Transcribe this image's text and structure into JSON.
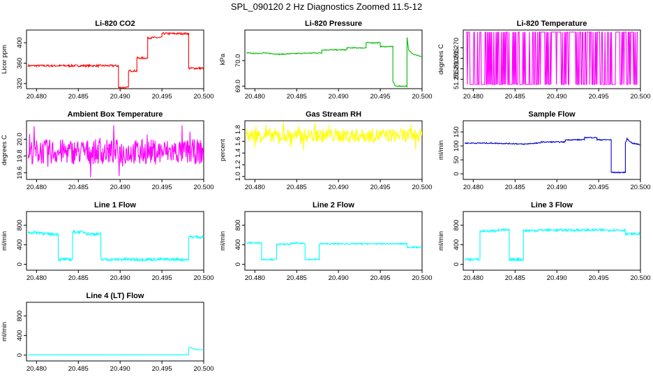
{
  "page_title": "SPL_090120  2 Hz Diagnostics Zoomed 11.5-12",
  "colors": {
    "red": "#ff0000",
    "green": "#00bb00",
    "magenta": "#ff00ff",
    "yellow": "#ffff00",
    "blue": "#0000cc",
    "cyan": "#00ffff"
  },
  "chart_data": [
    {
      "title": "Li-820 CO2",
      "type": "line",
      "ylabel": "Licor ppm",
      "color": "#ff0000",
      "xlim": [
        20.4788,
        20.5
      ],
      "ylim": [
        310,
        425
      ],
      "xticks": [
        "20.480",
        "20.485",
        "20.490",
        "20.495",
        "20.500"
      ],
      "yticks": [
        "320",
        "360",
        "400"
      ],
      "noise": 2,
      "series": [
        {
          "name": "CO2",
          "x": [
            20.479,
            20.4898,
            20.4898,
            20.491,
            20.491,
            20.492,
            20.492,
            20.4933,
            20.4933,
            20.495,
            20.495,
            20.4982,
            20.4982,
            20.5
          ],
          "y": [
            355,
            355,
            312,
            312,
            345,
            345,
            370,
            370,
            410,
            410,
            418,
            418,
            350,
            350
          ]
        }
      ]
    },
    {
      "title": "Li-820 Pressure",
      "type": "line",
      "ylabel": "kPa",
      "color": "#00bb00",
      "xlim": [
        20.4788,
        20.5
      ],
      "ylim": [
        68.9,
        71.2
      ],
      "xticks": [
        "20.480",
        "20.485",
        "20.490",
        "20.495",
        "20.500"
      ],
      "yticks": [
        "69.0",
        "70.0"
      ],
      "noise": 0.02,
      "series": [
        {
          "name": "Pressure",
          "x": [
            20.479,
            20.48,
            20.481,
            20.483,
            20.485,
            20.487,
            20.488,
            20.488,
            20.491,
            20.491,
            20.4933,
            20.4933,
            20.495,
            20.495,
            20.4965,
            20.4965,
            20.4968,
            20.4982,
            20.4982,
            20.4984,
            20.499,
            20.5
          ],
          "y": [
            70.3,
            70.28,
            70.3,
            70.25,
            70.28,
            70.3,
            70.3,
            70.42,
            70.42,
            70.5,
            70.5,
            70.7,
            70.7,
            70.55,
            70.55,
            69.2,
            69.0,
            69.0,
            70.9,
            70.4,
            70.25,
            70.15
          ]
        }
      ]
    },
    {
      "title": "Li-820 Temperature",
      "type": "step-noise",
      "ylabel": "degrees C",
      "color": "#ff00ff",
      "xlim": [
        20.4788,
        20.5
      ],
      "ylim": [
        51.2505,
        51.2785
      ],
      "xticks": [
        "20.480",
        "20.485",
        "20.490",
        "20.495",
        "20.500"
      ],
      "yticks": [
        "51.255",
        "51.260",
        "51.265",
        "51.270"
      ],
      "noise": 0,
      "series": [
        {
          "name": "Temperature",
          "levels": [
            51.2525,
            51.2775
          ]
        }
      ]
    },
    {
      "title": "Ambient Box Temperature",
      "type": "noise",
      "ylabel": "degrees C",
      "color": "#ff00ff",
      "xlim": [
        20.4788,
        20.5
      ],
      "ylim": [
        19.52,
        20.22
      ],
      "xticks": [
        "20.480",
        "20.485",
        "20.490",
        "20.495",
        "20.500"
      ],
      "yticks": [
        "19.6",
        "19.8",
        "20.0"
      ],
      "noise": 0.15,
      "series": [
        {
          "name": "Box Temp",
          "x": [
            20.479,
            20.5
          ],
          "y": [
            19.85,
            19.85
          ]
        }
      ]
    },
    {
      "title": "Gas Stream RH",
      "type": "noise",
      "ylabel": "percent",
      "color": "#ffff00",
      "xlim": [
        20.4788,
        20.5
      ],
      "ylim": [
        0.95,
        1.95
      ],
      "xticks": [
        "20.480",
        "20.485",
        "20.490",
        "20.495",
        "20.500"
      ],
      "yticks": [
        "1.0",
        "1.2",
        "1.4",
        "1.6",
        "1.8"
      ],
      "noise": 0.12,
      "series": [
        {
          "name": "RH",
          "x": [
            20.479,
            20.5
          ],
          "y": [
            1.7,
            1.7
          ]
        }
      ]
    },
    {
      "title": "Sample Flow",
      "type": "line",
      "ylabel": "ml/min",
      "color": "#0000cc",
      "xlim": [
        20.4788,
        20.5
      ],
      "ylim": [
        -20,
        190
      ],
      "xticks": [
        "20.480",
        "20.485",
        "20.490",
        "20.495",
        "20.500"
      ],
      "yticks": [
        "0",
        "50",
        "100",
        "150"
      ],
      "noise": 2,
      "series": [
        {
          "name": "Sample Flow",
          "x": [
            20.479,
            20.482,
            20.485,
            20.486,
            20.487,
            20.488,
            20.488,
            20.491,
            20.491,
            20.4933,
            20.4933,
            20.4948,
            20.4948,
            20.4965,
            20.4965,
            20.4982,
            20.4982,
            20.4984,
            20.499,
            20.5
          ],
          "y": [
            110,
            110,
            108,
            106,
            109,
            110,
            114,
            114,
            122,
            122,
            130,
            130,
            122,
            122,
            5,
            5,
            110,
            125,
            110,
            104
          ]
        }
      ]
    },
    {
      "title": "Line 1 Flow",
      "type": "line",
      "ylabel": "ml/min",
      "color": "#00ffff",
      "xlim": [
        20.4788,
        20.5
      ],
      "ylim": [
        -120,
        1080
      ],
      "xticks": [
        "20.480",
        "20.485",
        "20.490",
        "20.495",
        "20.500"
      ],
      "yticks": [
        "0",
        "400",
        "800"
      ],
      "noise": 30,
      "series": [
        {
          "name": "Line 1",
          "x": [
            20.479,
            20.4808,
            20.4808,
            20.4826,
            20.4826,
            20.4843,
            20.4843,
            20.486,
            20.486,
            20.4877,
            20.4877,
            20.4982,
            20.4982,
            20.5
          ],
          "y": [
            650,
            650,
            620,
            620,
            100,
            100,
            660,
            660,
            620,
            620,
            100,
            100,
            560,
            560
          ]
        }
      ]
    },
    {
      "title": "Line 2 Flow",
      "type": "line",
      "ylabel": "ml/min",
      "color": "#00ffff",
      "xlim": [
        20.4788,
        20.5
      ],
      "ylim": [
        -120,
        1080
      ],
      "xticks": [
        "20.480",
        "20.485",
        "20.490",
        "20.495",
        "20.500"
      ],
      "yticks": [
        "0",
        "400",
        "800"
      ],
      "noise": 15,
      "series": [
        {
          "name": "Line 2",
          "x": [
            20.479,
            20.4808,
            20.4808,
            20.4826,
            20.4826,
            20.4843,
            20.4843,
            20.486,
            20.486,
            20.4877,
            20.4877,
            20.4982,
            20.4982,
            20.5
          ],
          "y": [
            440,
            440,
            100,
            100,
            410,
            410,
            430,
            430,
            100,
            100,
            420,
            420,
            350,
            350
          ]
        }
      ]
    },
    {
      "title": "Line 3 Flow",
      "type": "line",
      "ylabel": "ml/min",
      "color": "#00ffff",
      "xlim": [
        20.4788,
        20.5
      ],
      "ylim": [
        -120,
        1080
      ],
      "xticks": [
        "20.480",
        "20.485",
        "20.490",
        "20.495",
        "20.500"
      ],
      "yticks": [
        "0",
        "400",
        "800"
      ],
      "noise": 25,
      "series": [
        {
          "name": "Line 3",
          "x": [
            20.479,
            20.4808,
            20.4808,
            20.4826,
            20.4826,
            20.4843,
            20.4843,
            20.486,
            20.486,
            20.4877,
            20.4877,
            20.4982,
            20.4982,
            20.5
          ],
          "y": [
            100,
            100,
            680,
            680,
            700,
            700,
            100,
            100,
            690,
            690,
            700,
            700,
            620,
            620
          ]
        }
      ]
    },
    {
      "title": "Line 4 (LT) Flow",
      "type": "line",
      "ylabel": "ml/min",
      "color": "#00ffff",
      "xlim": [
        20.4788,
        20.5
      ],
      "ylim": [
        -120,
        1080
      ],
      "xticks": [
        "20.480",
        "20.485",
        "20.490",
        "20.495",
        "20.500"
      ],
      "yticks": [
        "0",
        "400",
        "800"
      ],
      "noise": 2,
      "series": [
        {
          "name": "Line 4",
          "x": [
            20.479,
            20.4982,
            20.4982,
            20.4984,
            20.499,
            20.5
          ],
          "y": [
            5,
            5,
            140,
            160,
            110,
            110
          ]
        }
      ]
    }
  ]
}
